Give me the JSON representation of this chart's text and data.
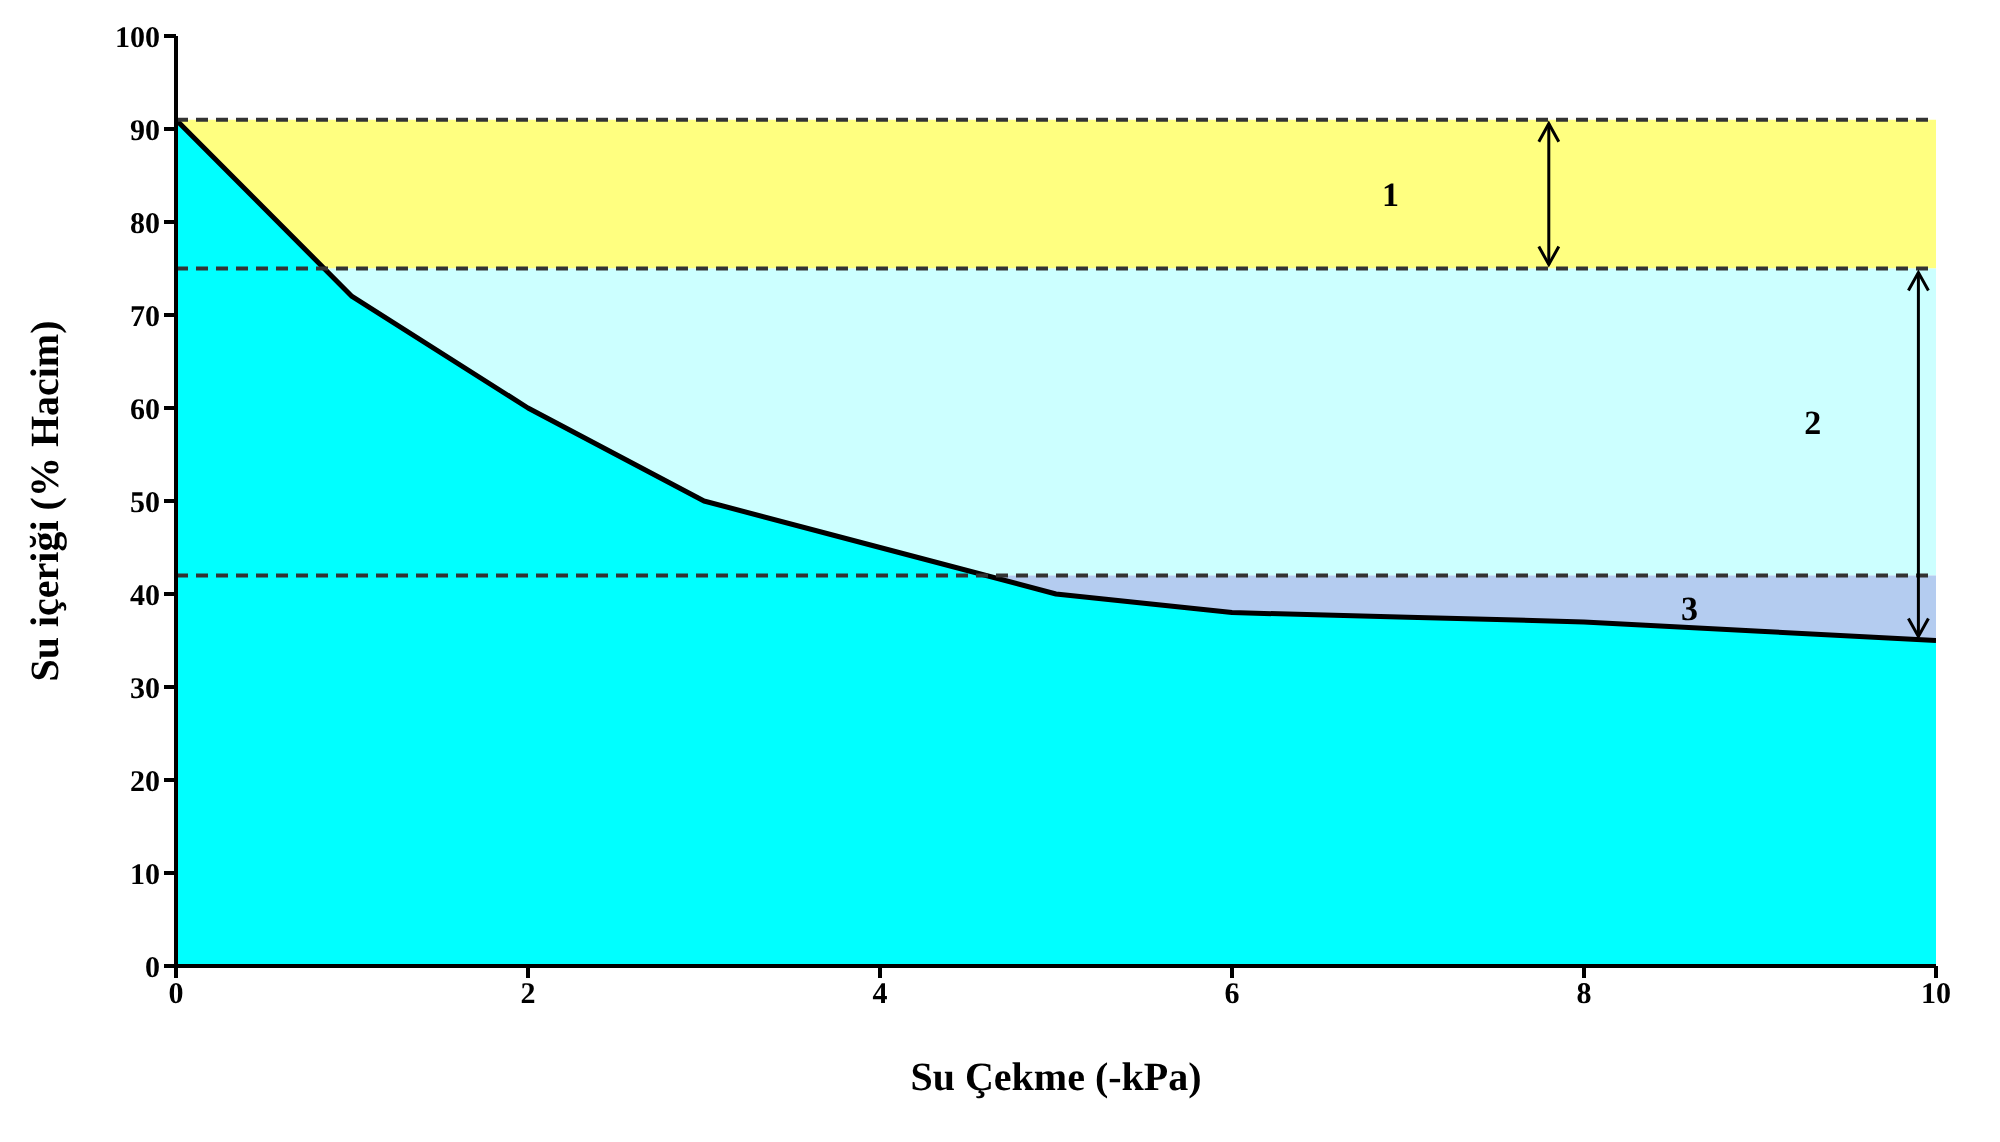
{
  "chart_data": {
    "type": "area",
    "xlabel": "Su Çekme  (-kPa)",
    "ylabel": "Su içeriği (% Hacim)",
    "x": [
      0,
      1,
      2,
      3,
      4,
      5,
      6,
      7,
      8,
      9,
      10
    ],
    "series": [
      {
        "color": "#00ffff",
        "values": [
          91,
          72,
          60,
          50,
          45,
          40,
          38,
          37.5,
          37,
          36,
          35
        ]
      }
    ],
    "xlim": [
      0,
      10
    ],
    "xticks": [
      0,
      2,
      4,
      6,
      8,
      10
    ],
    "ylim": [
      0,
      100
    ],
    "yticks": [
      0,
      10,
      20,
      30,
      40,
      50,
      60,
      70,
      80,
      90,
      100
    ],
    "grid": false,
    "legend": false,
    "bands": [
      {
        "axis": "y",
        "from": 75,
        "to": 91,
        "label": "1",
        "color": "#ffff80"
      },
      {
        "axis": "y",
        "from": 42,
        "to": 75,
        "label": "2",
        "color": "#ccffff"
      },
      {
        "axis": "y",
        "from": 35,
        "to": 42,
        "label": "3",
        "color": "#b4ccf0"
      }
    ],
    "ref_lines": [
      {
        "axis": "y",
        "value": 91,
        "line_style": "dashed"
      },
      {
        "axis": "y",
        "value": 75,
        "line_style": "dashed"
      },
      {
        "axis": "y",
        "value": 42,
        "line_style": "dashed"
      }
    ]
  }
}
